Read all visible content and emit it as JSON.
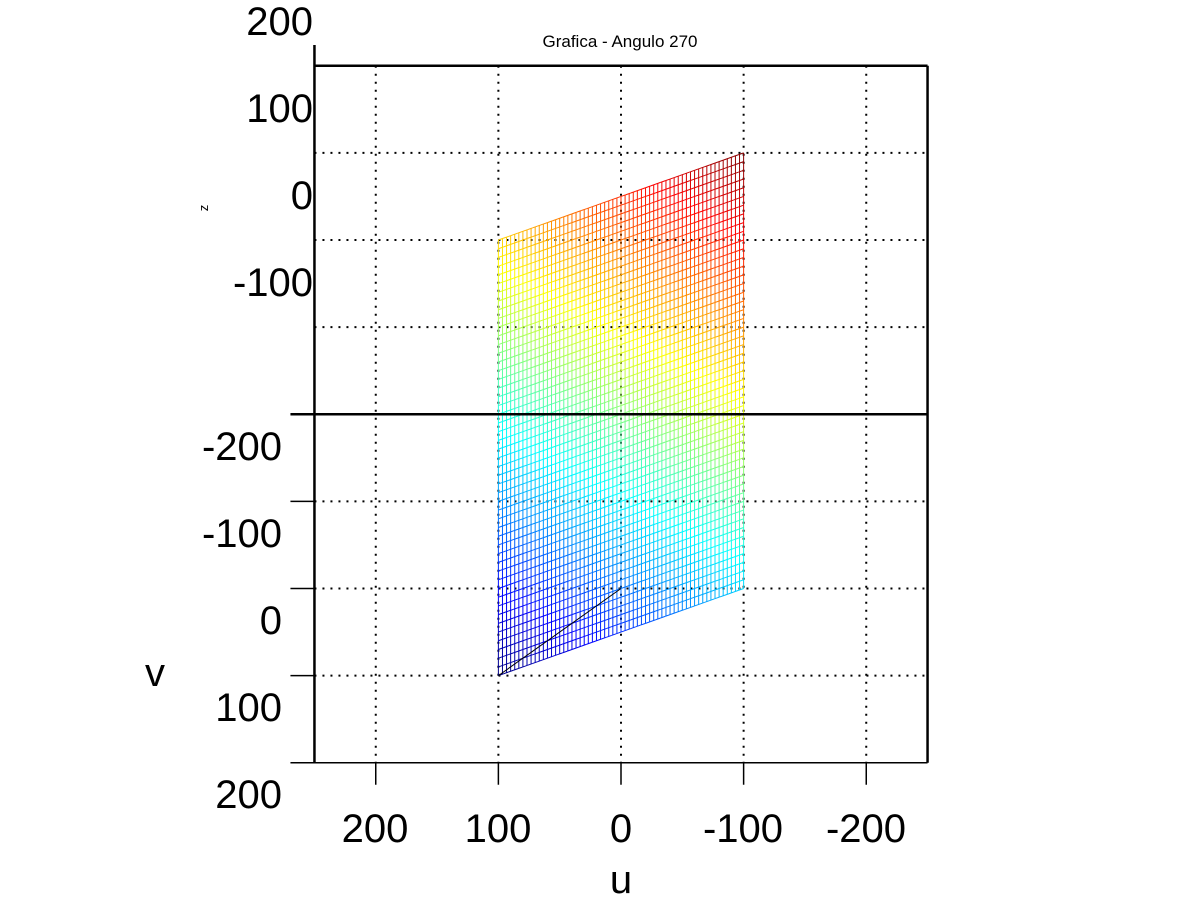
{
  "chart_data": {
    "type": "surface",
    "title": "Grafica - Angulo  270",
    "xlabel": "u",
    "ylabel": "v",
    "zlabel": "z",
    "view_angle": 270,
    "xlim": [
      250,
      -250
    ],
    "ylim": [
      200,
      -200
    ],
    "zlim": [
      -200,
      200
    ],
    "x_ticks": [
      "200",
      "100",
      "0",
      "-100",
      "-200"
    ],
    "v_ticks": [
      "-200",
      "-100",
      "0",
      "100",
      "200"
    ],
    "z_ticks": [
      "200",
      "100",
      "0",
      "-100"
    ],
    "grid": true,
    "colormap": "jet",
    "surface": {
      "u_range": [
        100,
        -100
      ],
      "v_range": [
        100,
        -200
      ],
      "corners": [
        {
          "u": 100,
          "v": 100,
          "z": -200
        },
        {
          "u": -100,
          "v": 100,
          "z": -100
        },
        {
          "u": -100,
          "v": -200,
          "z": 100
        },
        {
          "u": 100,
          "v": -200,
          "z": 0
        }
      ]
    },
    "line": {
      "points": [
        {
          "u": 100,
          "v": 100,
          "z": -200
        },
        {
          "u": 0,
          "v": 0,
          "z": -200
        }
      ]
    }
  }
}
